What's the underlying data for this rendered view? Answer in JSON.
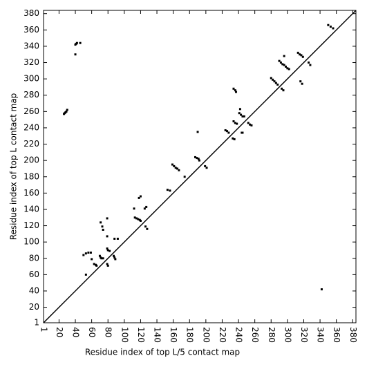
{
  "chart_data": {
    "type": "scatter",
    "x_label": "Residue index of top L/5 contact map",
    "y_label": "Residue index of top L contact map",
    "xlim": [
      1,
      384
    ],
    "ylim": [
      1,
      384
    ],
    "xticks": [
      1,
      20,
      40,
      60,
      80,
      100,
      120,
      140,
      160,
      180,
      200,
      220,
      240,
      260,
      280,
      300,
      320,
      340,
      360,
      380
    ],
    "yticks": [
      1,
      20,
      40,
      60,
      80,
      100,
      120,
      140,
      160,
      180,
      200,
      220,
      240,
      260,
      280,
      300,
      320,
      340,
      360,
      380
    ],
    "diagonal": true,
    "color": "#000000",
    "x": [
      26,
      27,
      28,
      29,
      30,
      40,
      41,
      42,
      40,
      46,
      50,
      53,
      56,
      59,
      53,
      60,
      63,
      65,
      66,
      70,
      71,
      72,
      74,
      71,
      73,
      74,
      79,
      80,
      82,
      79,
      80,
      79,
      79,
      87,
      88,
      89,
      88,
      92,
      113,
      115,
      117,
      119,
      120,
      118,
      120,
      112,
      125,
      127,
      126,
      128,
      153,
      156,
      159,
      161,
      163,
      165,
      167,
      174,
      187,
      189,
      191,
      192,
      199,
      201,
      190,
      224,
      226,
      228,
      233,
      235,
      234,
      236,
      238,
      234,
      236,
      237,
      241,
      243,
      245,
      247,
      242,
      244,
      245,
      252,
      254,
      256,
      280,
      282,
      284,
      286,
      288,
      290,
      292,
      294,
      296,
      298,
      300,
      302,
      293,
      295,
      296,
      313,
      315,
      317,
      319,
      316,
      318,
      326,
      328,
      350,
      353,
      356,
      342
    ],
    "values": [
      257,
      258,
      259,
      260,
      262,
      342,
      343,
      344,
      330,
      344,
      84,
      86,
      87,
      87,
      60,
      79,
      73,
      72,
      71,
      83,
      81,
      80,
      80,
      124,
      119,
      115,
      92,
      90,
      89,
      73,
      71,
      129,
      107,
      83,
      81,
      79,
      104,
      104,
      130,
      129,
      128,
      127,
      126,
      154,
      156,
      141,
      141,
      143,
      119,
      116,
      164,
      163,
      195,
      193,
      191,
      190,
      188,
      180,
      204,
      203,
      202,
      200,
      193,
      191,
      235,
      237,
      236,
      234,
      227,
      226,
      248,
      246,
      245,
      288,
      286,
      284,
      258,
      256,
      254,
      254,
      263,
      234,
      234,
      246,
      244,
      243,
      301,
      299,
      297,
      295,
      293,
      322,
      320,
      318,
      317,
      315,
      313,
      312,
      288,
      286,
      328,
      332,
      330,
      329,
      327,
      297,
      294,
      320,
      317,
      366,
      364,
      362,
      42
    ]
  }
}
